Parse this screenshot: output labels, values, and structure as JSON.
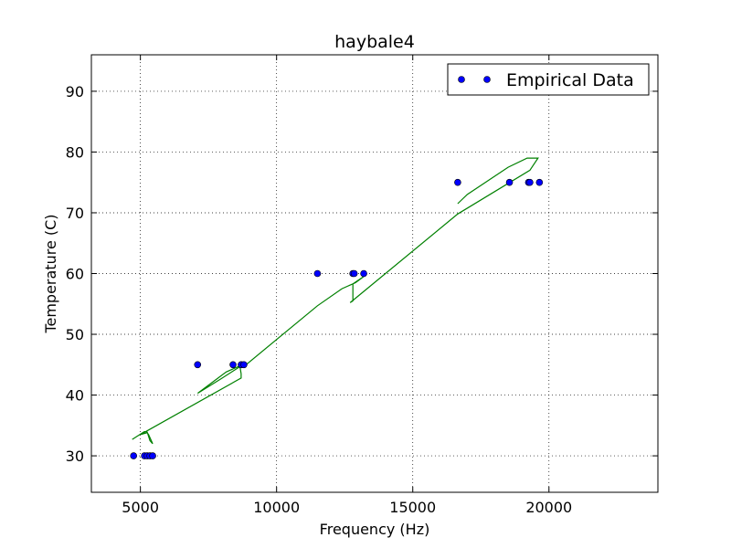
{
  "chart_data": {
    "type": "scatter",
    "title": "haybale4",
    "xlabel": "Frequency (Hz)",
    "ylabel": "Temperature (C)",
    "xlim": [
      3200,
      24000
    ],
    "ylim": [
      24,
      96
    ],
    "xticks": [
      5000,
      10000,
      15000,
      20000
    ],
    "yticks": [
      30,
      40,
      50,
      60,
      70,
      80,
      90
    ],
    "grid": true,
    "legend_position": "top-right",
    "colors": {
      "points": "#0000ff",
      "line": "#008000"
    },
    "series": [
      {
        "name": "Empirical Data",
        "type": "scatter",
        "points": [
          [
            4750,
            30
          ],
          [
            5150,
            30
          ],
          [
            5250,
            30
          ],
          [
            5350,
            30
          ],
          [
            5450,
            30
          ],
          [
            7100,
            45
          ],
          [
            8400,
            45
          ],
          [
            8700,
            45
          ],
          [
            8800,
            45
          ],
          [
            11500,
            60
          ],
          [
            12800,
            60
          ],
          [
            12850,
            60
          ],
          [
            13200,
            60
          ],
          [
            16650,
            75
          ],
          [
            18550,
            75
          ],
          [
            19250,
            75
          ],
          [
            19300,
            75
          ],
          [
            19650,
            75
          ]
        ]
      },
      {
        "type": "line",
        "points": [
          [
            4700,
            32.7
          ],
          [
            5150,
            34.0
          ],
          [
            5250,
            33.9
          ],
          [
            5350,
            32.5
          ],
          [
            5450,
            32.0
          ],
          [
            5400,
            32.5
          ],
          [
            5300,
            33.5
          ],
          [
            5250,
            33.8
          ],
          [
            5000,
            33.5
          ],
          [
            8700,
            42.8
          ],
          [
            8700,
            43.5
          ],
          [
            8650,
            44.8
          ],
          [
            8150,
            43.8
          ],
          [
            7100,
            40.3
          ],
          [
            7900,
            42.5
          ],
          [
            8700,
            44.8
          ],
          [
            8800,
            44.7
          ],
          [
            11500,
            54.7
          ],
          [
            12400,
            57.5
          ],
          [
            12900,
            58.5
          ],
          [
            13200,
            59.5
          ],
          [
            12800,
            58.3
          ],
          [
            12800,
            55.5
          ],
          [
            12700,
            55.2
          ],
          [
            16650,
            69.8
          ],
          [
            19300,
            77.0
          ],
          [
            19600,
            79.0
          ],
          [
            19200,
            79.0
          ],
          [
            18500,
            77.5
          ],
          [
            17000,
            73.0
          ],
          [
            16650,
            71.5
          ]
        ]
      }
    ]
  }
}
